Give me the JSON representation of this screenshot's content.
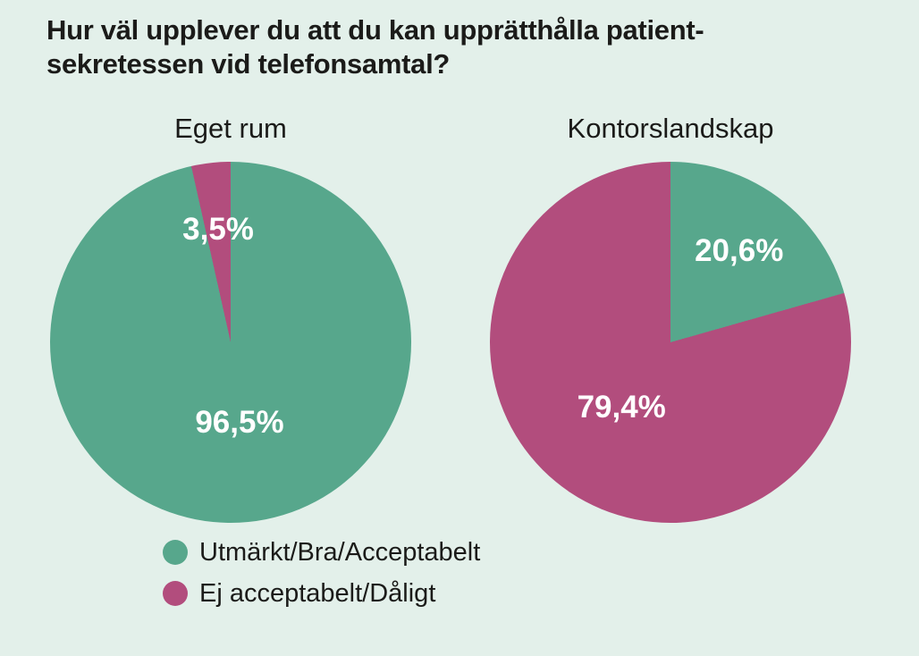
{
  "colors": {
    "background": "#e3f0ea",
    "positive": "#57a78c",
    "negative": "#b24d7d",
    "slice_label_text": "#ffffff",
    "text": "#1b1b19"
  },
  "title": {
    "lines": [
      "Hur väl upplever du att du kan upprätthålla patient-",
      "sekretessen vid telefonsamtal?"
    ]
  },
  "legend": {
    "items": [
      {
        "label": "Utmärkt/Bra/Acceptabelt",
        "color": "#57a78c"
      },
      {
        "label": "Ej acceptabelt/Dåligt",
        "color": "#b24d7d"
      }
    ]
  },
  "chart_data": [
    {
      "type": "pie",
      "title": "Eget rum",
      "start_angle_deg": 0,
      "direction": "clockwise",
      "slices": [
        {
          "name": "Utmärkt/Bra/Acceptabelt",
          "value": 96.5,
          "display": "96,5%",
          "color": "#57a78c"
        },
        {
          "name": "Ej acceptabelt/Dåligt",
          "value": 3.5,
          "display": "3,5%",
          "color": "#b24d7d"
        }
      ]
    },
    {
      "type": "pie",
      "title": "Kontorslandskap",
      "start_angle_deg": 0,
      "direction": "clockwise",
      "slices": [
        {
          "name": "Utmärkt/Bra/Acceptabelt",
          "value": 20.6,
          "display": "20,6%",
          "color": "#57a78c"
        },
        {
          "name": "Ej acceptabelt/Dåligt",
          "value": 79.4,
          "display": "79,4%",
          "color": "#b24d7d"
        }
      ]
    }
  ]
}
